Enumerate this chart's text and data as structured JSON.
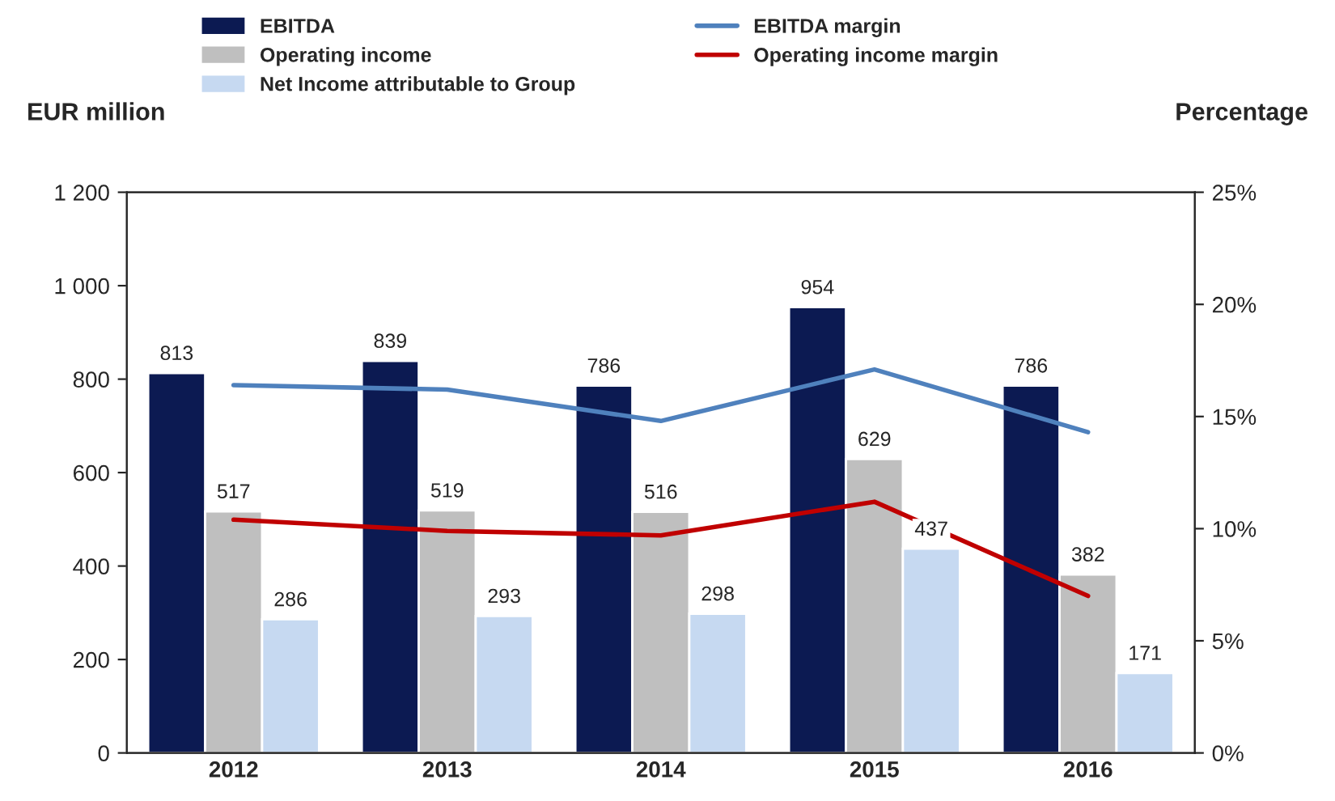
{
  "chart_data": {
    "type": "bar",
    "ylabel": "EUR million",
    "y2label": "Percentage",
    "categories": [
      "2012",
      "2013",
      "2014",
      "2015",
      "2016"
    ],
    "series": [
      {
        "name": "EBITDA",
        "color": "#0c1a52",
        "values": [
          813,
          839,
          786,
          954,
          786
        ],
        "value_labels": [
          "813",
          "839",
          "786",
          "954",
          "786"
        ]
      },
      {
        "name": "Operating income",
        "color": "#bfbfbf",
        "values": [
          517,
          519,
          516,
          629,
          382
        ],
        "value_labels": [
          "517",
          "519",
          "516",
          "629",
          "382"
        ]
      },
      {
        "name": "Net Income attributable to Group",
        "color": "#c6d9f1",
        "values": [
          286,
          293,
          298,
          437,
          171
        ],
        "value_labels": [
          "286",
          "293",
          "298",
          "437",
          "171"
        ]
      },
      {
        "name": "EBITDA margin",
        "type": "line",
        "axis": "y2",
        "color": "#4f81bd",
        "values": [
          16.4,
          16.2,
          14.8,
          17.1,
          14.3
        ]
      },
      {
        "name": "Operating income margin",
        "type": "line",
        "axis": "y2",
        "color": "#c00000",
        "values": [
          10.4,
          9.9,
          9.7,
          11.2,
          7.0
        ]
      }
    ],
    "ylim": [
      0,
      1200
    ],
    "yticks": [
      0,
      200,
      400,
      600,
      800,
      {
        "value": 1000,
        "label": "1 000"
      },
      {
        "value": 1200,
        "label": "1 200"
      }
    ],
    "y2lim": [
      0,
      25
    ],
    "y2ticks": [
      {
        "value": 0,
        "label": "0%"
      },
      {
        "value": 5,
        "label": "5%"
      },
      {
        "value": 10,
        "label": "10%"
      },
      {
        "value": 15,
        "label": "15%"
      },
      {
        "value": 20,
        "label": "20%"
      },
      {
        "value": 25,
        "label": "25%"
      }
    ],
    "legend": "top",
    "grid": false,
    "marker": "none",
    "line_style": "solid"
  }
}
